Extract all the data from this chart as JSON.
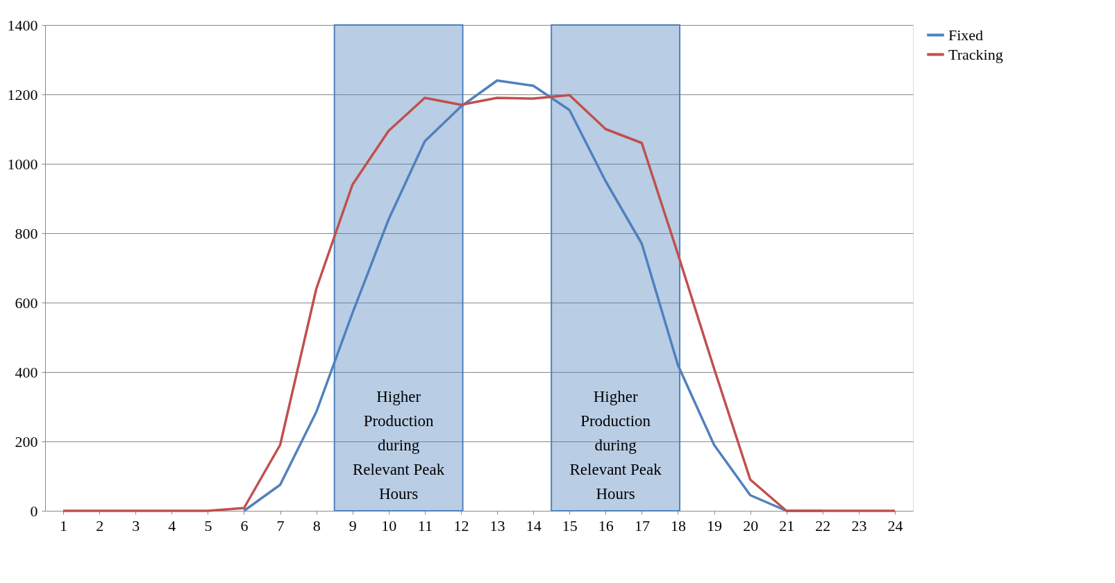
{
  "chart_data": {
    "type": "line",
    "x": [
      1,
      2,
      3,
      4,
      5,
      6,
      7,
      8,
      9,
      10,
      11,
      12,
      13,
      14,
      15,
      16,
      17,
      18,
      19,
      20,
      21,
      22,
      23,
      24
    ],
    "xlim": [
      0.5,
      24.5
    ],
    "xticks": [
      1,
      2,
      3,
      4,
      5,
      6,
      7,
      8,
      9,
      10,
      11,
      12,
      13,
      14,
      15,
      16,
      17,
      18,
      19,
      20,
      21,
      22,
      23,
      24
    ],
    "ylim": [
      0,
      1400
    ],
    "yticks": [
      0,
      200,
      400,
      600,
      800,
      {
        "value": 1000,
        "label": "1000"
      },
      {
        "value": 1200,
        "label": "1200"
      },
      {
        "value": 1400,
        "label": "1400"
      }
    ],
    "grid": "y",
    "legend": "right",
    "line_style": "solid",
    "marker": "none",
    "series": [
      {
        "name": "Fixed",
        "color": "#4f81bd",
        "values": [
          null,
          null,
          null,
          null,
          null,
          0,
          75,
          285,
          570,
          840,
          1065,
          1165,
          1240,
          1225,
          1155,
          950,
          770,
          420,
          190,
          45,
          0,
          0,
          null,
          null
        ]
      },
      {
        "name": "Tracking",
        "color": "#c0504d",
        "values": [
          0,
          0,
          0,
          0,
          0,
          8,
          190,
          640,
          940,
          1095,
          1190,
          1170,
          1190,
          1188,
          1198,
          1100,
          1060,
          740,
          410,
          90,
          0,
          0,
          0,
          0
        ]
      }
    ],
    "bands": [
      {
        "axis": "x",
        "from": 8.5,
        "to": 12.05,
        "label": "Higher\nProduction\nduring\nRelevant Peak\nHours",
        "color": "#4f81bd"
      },
      {
        "axis": "x",
        "from": 14.5,
        "to": 18.05,
        "label": "Higher\nProduction\nduring\nRelevant Peak\nHours",
        "color": "#4f81bd"
      }
    ]
  }
}
